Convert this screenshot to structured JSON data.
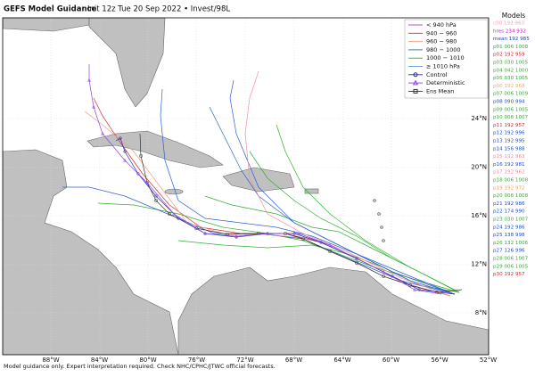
{
  "header": {
    "title": "GEFS Model Guidance",
    "subtitle": "Init 12z Tue 20 Sep 2022 • Invest/98L"
  },
  "map": {
    "lon_labels": [
      "88°W",
      "84°W",
      "80°W",
      "76°W",
      "72°W",
      "68°W",
      "64°W",
      "60°W",
      "56°W",
      "52°W"
    ],
    "lat_labels": [
      "24°N",
      "20°N",
      "16°N",
      "12°N",
      "8°N"
    ],
    "legend": [
      {
        "label": "< 940 hPa",
        "color": "#b040c0"
      },
      {
        "label": "940 − 960",
        "color": "#d03030"
      },
      {
        "label": "960 − 980",
        "color": "#f0a080"
      },
      {
        "label": "980 − 1000",
        "color": "#3060d0"
      },
      {
        "label": "1000 − 1010",
        "color": "#30b030"
      },
      {
        "label": "≥ 1010 hPa",
        "color": "#7090e0"
      },
      {
        "label": "Control",
        "color": "#2030c0"
      },
      {
        "label": "Deterministic",
        "color": "#9040e0"
      },
      {
        "label": "Ens Mean",
        "color": "#333333"
      }
    ]
  },
  "models": {
    "title": "Models",
    "items": [
      {
        "label": "c00 192 963",
        "color": "#f0a0c0"
      },
      {
        "label": "hres 234 932",
        "color": "#c020c0"
      },
      {
        "label": "mean 192 985",
        "color": "#2040c0"
      },
      {
        "label": "p01 006 1008",
        "color": "#30b030"
      },
      {
        "label": "p02 192 959",
        "color": "#d03030"
      },
      {
        "label": "p03 030 1005",
        "color": "#30b030"
      },
      {
        "label": "p04 042 1000",
        "color": "#30b030"
      },
      {
        "label": "p05 030 1005",
        "color": "#30b030"
      },
      {
        "label": "p06 192 968",
        "color": "#f0b070"
      },
      {
        "label": "p07 006 1009",
        "color": "#30b030"
      },
      {
        "label": "p08 090 994",
        "color": "#2050d0"
      },
      {
        "label": "p09 006 1005",
        "color": "#30b030"
      },
      {
        "label": "p10 006 1007",
        "color": "#30b030"
      },
      {
        "label": "p11 192 957",
        "color": "#d03030"
      },
      {
        "label": "p12 192 996",
        "color": "#2050d0"
      },
      {
        "label": "p13 192 995",
        "color": "#2050d0"
      },
      {
        "label": "p14 156 988",
        "color": "#2050d0"
      },
      {
        "label": "p15 192 963",
        "color": "#f090a0"
      },
      {
        "label": "p16 192 981",
        "color": "#2050d0"
      },
      {
        "label": "p17 192 962",
        "color": "#f090a0"
      },
      {
        "label": "p18 006 1008",
        "color": "#30b030"
      },
      {
        "label": "p19 192 972",
        "color": "#f0a060"
      },
      {
        "label": "p20 006 1008",
        "color": "#30b030"
      },
      {
        "label": "p21 192 986",
        "color": "#2050d0"
      },
      {
        "label": "p22 174 990",
        "color": "#2050d0"
      },
      {
        "label": "p23 030 1007",
        "color": "#30b030"
      },
      {
        "label": "p24 192 986",
        "color": "#2050d0"
      },
      {
        "label": "p25 138 998",
        "color": "#2050d0"
      },
      {
        "label": "p26 132 1006",
        "color": "#30b030"
      },
      {
        "label": "p27 126 996",
        "color": "#2050d0"
      },
      {
        "label": "p28 006 1007",
        "color": "#30b030"
      },
      {
        "label": "p29 006 1005",
        "color": "#30b030"
      },
      {
        "label": "p30 192 957",
        "color": "#d03030"
      }
    ]
  },
  "footer": "Model guidance only. Expert interpretation required. Check NHC/CPHC/JTWC official forecasts."
}
